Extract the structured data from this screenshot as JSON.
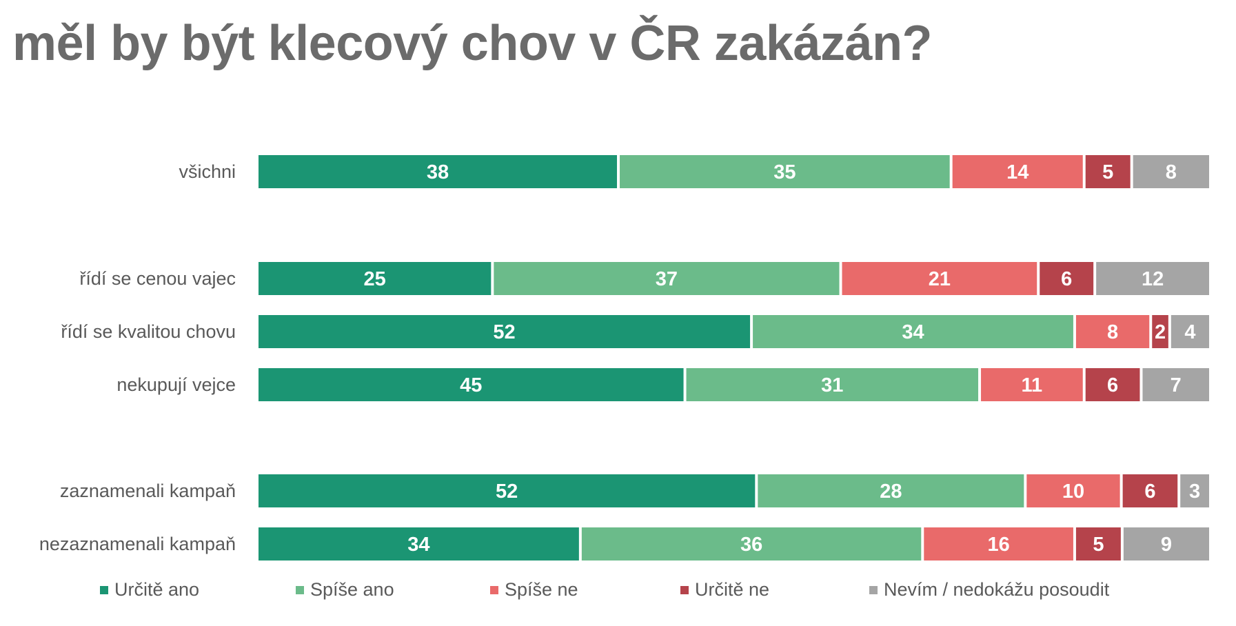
{
  "title": "měl by být klecový chov v ČR zakázán?",
  "chart_data": {
    "type": "bar",
    "orientation": "horizontal",
    "stacked": true,
    "title": "měl by být klecový chov v ČR zakázán?",
    "xlabel": "",
    "ylabel": "",
    "legend_position": "bottom",
    "categories": [
      "všichni",
      "řídí se cenou vajec",
      "řídí se kvalitou chovu",
      "nekupují vejce",
      "zaznamenali kampaň",
      "nezaznamenali kampaň"
    ],
    "series": [
      {
        "name": "Určitě ano",
        "color": "#1b9573",
        "values": [
          38,
          25,
          52,
          45,
          52,
          34
        ]
      },
      {
        "name": "Spíše ano",
        "color": "#6bbb8a",
        "values": [
          35,
          37,
          34,
          31,
          28,
          36
        ]
      },
      {
        "name": "Spíše ne",
        "color": "#e96a6a",
        "values": [
          14,
          21,
          8,
          11,
          10,
          16
        ]
      },
      {
        "name": "Určitě ne",
        "color": "#b5434b",
        "values": [
          5,
          6,
          2,
          6,
          6,
          5
        ]
      },
      {
        "name": "Nevím / nedokážu posoudit",
        "color": "#a5a5a5",
        "values": [
          8,
          12,
          4,
          7,
          3,
          9
        ]
      }
    ]
  }
}
